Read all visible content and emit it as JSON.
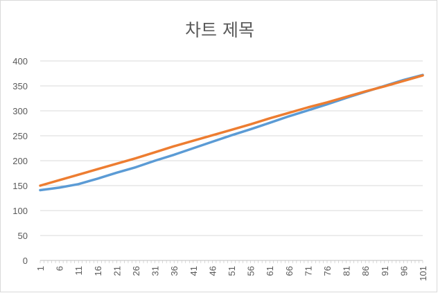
{
  "chart_data": {
    "type": "line",
    "title": "차트 제목",
    "xlabel": "",
    "ylabel": "",
    "x_ticks": [
      "1",
      "6",
      "11",
      "16",
      "21",
      "26",
      "31",
      "36",
      "41",
      "46",
      "51",
      "56",
      "61",
      "66",
      "71",
      "76",
      "81",
      "86",
      "91",
      "96",
      "101"
    ],
    "y_ticks": [
      "0",
      "50",
      "100",
      "150",
      "200",
      "250",
      "300",
      "350",
      "400"
    ],
    "xlim": [
      1,
      101
    ],
    "ylim": [
      0,
      400
    ],
    "grid": true,
    "legend": "none",
    "series": [
      {
        "color": "#5b9bd5",
        "x": [
          1,
          6,
          11,
          16,
          21,
          26,
          31,
          36,
          41,
          46,
          51,
          56,
          61,
          66,
          71,
          76,
          81,
          86,
          91,
          96,
          101
        ],
        "values": [
          141,
          146,
          153,
          164,
          176,
          187,
          200,
          212,
          225,
          238,
          251,
          263,
          276,
          289,
          301,
          313,
          326,
          338,
          350,
          362,
          372
        ]
      },
      {
        "color": "#ed7d31",
        "x": [
          1,
          6,
          11,
          16,
          21,
          26,
          31,
          36,
          41,
          46,
          51,
          56,
          61,
          66,
          71,
          76,
          81,
          86,
          91,
          96,
          101
        ],
        "values": [
          150,
          161,
          172,
          183,
          194,
          205,
          217,
          229,
          240,
          251,
          262,
          273,
          285,
          296,
          307,
          317,
          328,
          339,
          349,
          360,
          371
        ]
      }
    ]
  }
}
